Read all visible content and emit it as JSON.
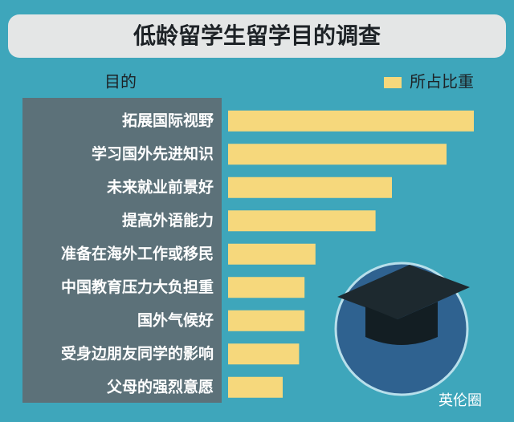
{
  "chart_data": {
    "type": "hbar",
    "title": "低龄留学生留学目的调查",
    "y_label": "目的",
    "categories": [
      "拓展国际视野",
      "学习国外先进知识",
      "未来就业前景好",
      "提高外语能力",
      "准备在海外工作或移民",
      "中国教育压力大负担重",
      "国外气候好",
      "受身边朋友同学的影响",
      "父母的强烈意愿"
    ],
    "series": [
      {
        "name": "所占比重",
        "color": "#f6d87c",
        "values": [
          45,
          40,
          30,
          27,
          16,
          14,
          14,
          13,
          10
        ]
      }
    ],
    "legend": "top-right",
    "watermark": "英伦圈"
  }
}
